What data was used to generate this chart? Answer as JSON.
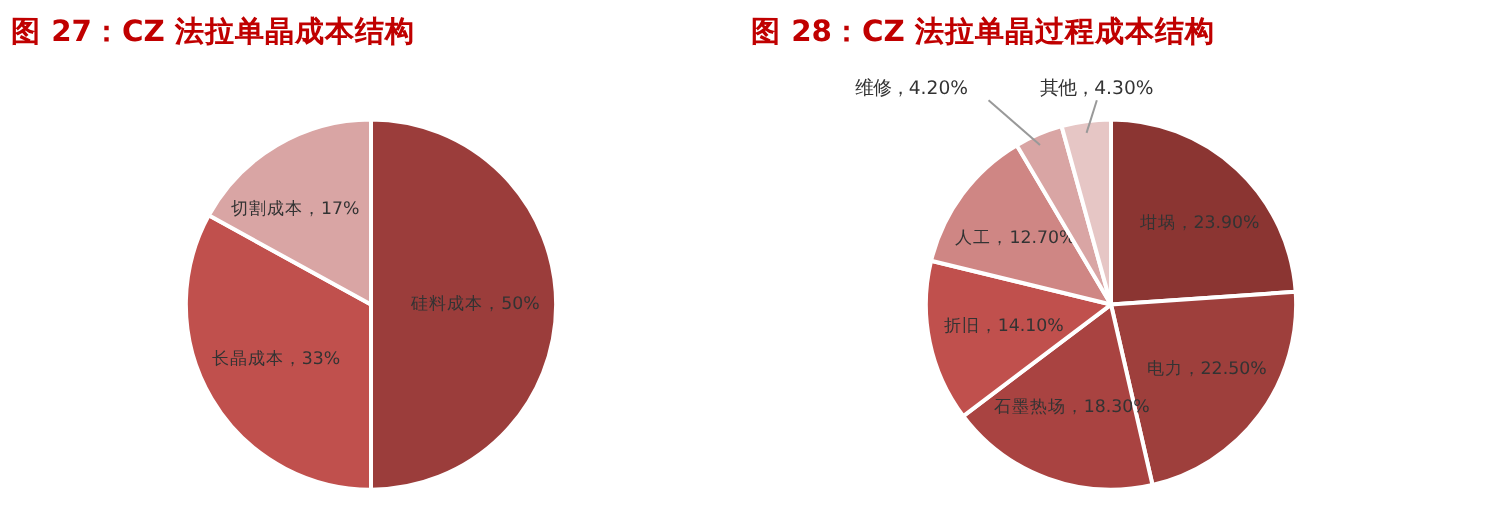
{
  "chart_data": [
    {
      "type": "pie",
      "title": "图 27：CZ 法拉单晶成本结构",
      "categories": [
        "硅料成本",
        "长晶成本",
        "切割成本"
      ],
      "values": [
        50,
        33,
        17
      ],
      "value_labels": [
        "50%",
        "33%",
        "17%"
      ],
      "colors": [
        "#9b3d3b",
        "#c0504d",
        "#d9a5a4"
      ],
      "legend": false
    },
    {
      "type": "pie",
      "title": "图 28：CZ 法拉单晶过程成本结构",
      "categories": [
        "坩埚",
        "电力",
        "石墨热场",
        "折旧",
        "人工",
        "维修",
        "其他"
      ],
      "values": [
        23.9,
        22.5,
        18.3,
        14.1,
        12.7,
        4.2,
        4.3
      ],
      "value_labels": [
        "23.90%",
        "22.50%",
        "18.30%",
        "14.10%",
        "12.70%",
        "4.20%",
        "4.30%"
      ],
      "colors": [
        "#8b3532",
        "#9e3f3c",
        "#a94341",
        "#c0504d",
        "#cf8684",
        "#d9a5a4",
        "#e6c6c5"
      ],
      "legend": false
    }
  ]
}
